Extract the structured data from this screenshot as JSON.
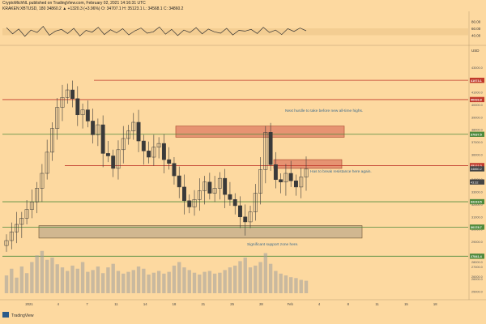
{
  "header": {
    "line1": "CryptoMichNL published on TradingView.com, February 02, 2021 14:16:31 UTC",
    "line2": "KRAKEN:XBTUSD, 180 34860.2 ▲ +1320.3 (+3.96%) O: 34707.1 H: 35123.1 L: 34568.1 C: 34860.2"
  },
  "indicator": {
    "values": [
      62,
      44,
      58,
      37,
      55,
      48,
      66,
      40,
      52,
      57,
      45,
      60,
      38,
      54,
      49,
      63,
      42,
      56,
      47,
      59,
      41,
      53,
      61,
      46,
      50,
      64,
      43,
      57,
      39,
      55,
      48,
      62,
      44,
      58,
      50,
      46,
      60,
      41,
      54,
      52,
      57,
      45,
      63,
      48,
      55,
      42,
      59,
      51,
      61,
      53
    ],
    "levels": [
      "60.00",
      "40.00"
    ],
    "axis_labels": [
      "80.00",
      "60.00",
      "40.00"
    ]
  },
  "axis": {
    "currency": "USD"
  },
  "colors": {
    "background": "#fdd9a0",
    "candle": "#3a3a3a",
    "volume": "#9e9e9e",
    "red_line": "#c0392b",
    "green_line": "#4f8a3c",
    "resistance_box": "#e2866a",
    "support_box": "#c9b08d",
    "green_tag": "#4f8a3c",
    "red_tag": "#c0392b",
    "dark_tag": "#444444"
  },
  "chart_data": {
    "type": "candlestick",
    "xlabel": "",
    "ylabel": "",
    "ylim": [
      25000,
      44000
    ],
    "x_ticks": [
      "2021",
      "4",
      "7",
      "11",
      "14",
      "18",
      "21",
      "25",
      "28",
      "Feb",
      "4",
      "8",
      "11",
      "15",
      "18"
    ],
    "y_ticks": [
      "43000.0",
      "42000.0",
      "41000.0",
      "40000.0",
      "39000.0",
      "38000.0",
      "37000.0",
      "36000.0",
      "35000.0",
      "34000.0",
      "33000.0",
      "32000.0",
      "31000.0",
      "30000.0",
      "29000.0",
      "28000.0",
      "27000.0",
      "26000.0",
      "25000.0"
    ],
    "close": [
      29100,
      29800,
      30400,
      30900,
      31600,
      32200,
      33300,
      34500,
      36200,
      38100,
      39800,
      40600,
      41200,
      40500,
      39200,
      39600,
      38700,
      37600,
      38400,
      36100,
      35900,
      34900,
      36400,
      37300,
      37900,
      38600,
      37100,
      36300,
      35800,
      36600,
      36900,
      35600,
      35300,
      34300,
      33400,
      32300,
      31800,
      32400,
      33100,
      33800,
      32900,
      33300,
      34100,
      32800,
      32400,
      31900,
      31000,
      30600,
      31400,
      32900,
      34800,
      37800,
      35200,
      34000,
      33800,
      34500,
      33900,
      33400,
      34200,
      34860
    ],
    "volume": [
      40,
      55,
      35,
      60,
      45,
      70,
      85,
      95,
      75,
      80,
      65,
      58,
      50,
      62,
      55,
      70,
      48,
      52,
      60,
      45,
      58,
      66,
      50,
      44,
      48,
      52,
      60,
      55,
      42,
      46,
      50,
      44,
      48,
      62,
      70,
      58,
      52,
      46,
      42,
      48,
      50,
      44,
      46,
      52,
      58,
      62,
      72,
      80,
      58,
      62,
      70,
      90,
      66,
      50,
      44,
      40,
      36,
      34,
      30,
      28
    ],
    "vol_axis": [
      "28000.0",
      "26000.0"
    ],
    "horizontal_levels": [
      {
        "value": 41973.1,
        "label": "41973.1",
        "color": "red"
      },
      {
        "value": 40426.8,
        "label": "40426.8",
        "color": "red"
      },
      {
        "value": 37637.5,
        "label": "37637.5",
        "color": "green"
      },
      {
        "value": 35122.3,
        "label": "35122.3",
        "color": "red"
      },
      {
        "value": 32219.5,
        "label": "32219.5",
        "color": "green"
      },
      {
        "value": 30178.7,
        "label": "30178.7",
        "color": "green"
      },
      {
        "value": 27841.4,
        "label": "27841.4",
        "color": "green"
      }
    ],
    "price_tags": [
      {
        "value": 34860.2,
        "label": "34860.2",
        "color": "dark"
      },
      {
        "value": 34000,
        "label": "43:32",
        "color": "dark"
      }
    ],
    "zones": [
      {
        "name": "resistance-1",
        "from": 37400,
        "to": 38300
      },
      {
        "name": "resistance-2",
        "from": 34900,
        "to": 35600
      },
      {
        "name": "support",
        "from": 29300,
        "to": 30300
      }
    ],
    "annotations": [
      "Next hurdle to take before new all-time highs.",
      "Has to break resistance here again.",
      "Significant support zone here."
    ]
  },
  "footer": {
    "brand": "TradingView"
  }
}
